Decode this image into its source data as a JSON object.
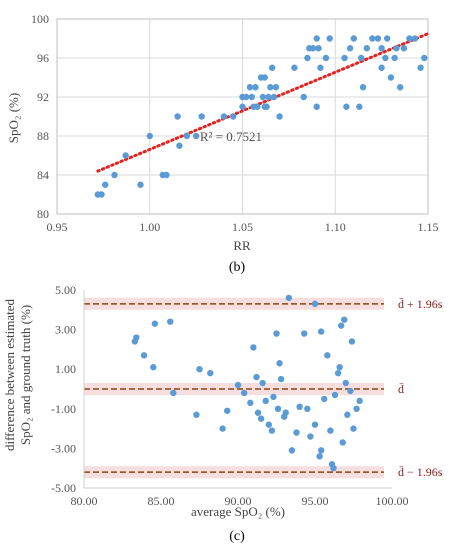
{
  "colors": {
    "points": "#5b9bd5",
    "trend": "#e32222",
    "bands": "#8b4513",
    "grid": "#d9d9d9",
    "band_bg": "#f7dede"
  },
  "chart_data": [
    {
      "type": "scatter",
      "panel_label": "(b)",
      "xlabel": "RR",
      "ylabel": "SpO₂ (%)",
      "xlim": [
        0.95,
        1.15
      ],
      "ylim": [
        80,
        100
      ],
      "xticks": [
        "0.95",
        "1.00",
        "1.05",
        "1.10",
        "1.15"
      ],
      "yticks": [
        "80",
        "84",
        "88",
        "92",
        "96",
        "100"
      ],
      "grid": true,
      "trendline": {
        "style": "dotted",
        "from": [
          0.972,
          84.4
        ],
        "to": [
          1.15,
          98.5
        ],
        "label": "R² = 0.7521",
        "label_at": [
          1.027,
          88.0
        ]
      },
      "points": [
        [
          0.972,
          82
        ],
        [
          0.974,
          82
        ],
        [
          0.976,
          83
        ],
        [
          0.981,
          84
        ],
        [
          0.987,
          86
        ],
        [
          0.995,
          83
        ],
        [
          1.0,
          88
        ],
        [
          1.007,
          84
        ],
        [
          1.009,
          84
        ],
        [
          1.015,
          90
        ],
        [
          1.016,
          87
        ],
        [
          1.02,
          88
        ],
        [
          1.025,
          88
        ],
        [
          1.028,
          90
        ],
        [
          1.04,
          90
        ],
        [
          1.045,
          90
        ],
        [
          1.05,
          91
        ],
        [
          1.05,
          92
        ],
        [
          1.052,
          92
        ],
        [
          1.054,
          93
        ],
        [
          1.055,
          92
        ],
        [
          1.056,
          91
        ],
        [
          1.057,
          93
        ],
        [
          1.058,
          91
        ],
        [
          1.06,
          94
        ],
        [
          1.061,
          92
        ],
        [
          1.062,
          94
        ],
        [
          1.062,
          91
        ],
        [
          1.063,
          91
        ],
        [
          1.064,
          92
        ],
        [
          1.065,
          93
        ],
        [
          1.066,
          95
        ],
        [
          1.067,
          92
        ],
        [
          1.068,
          93
        ],
        [
          1.07,
          90
        ],
        [
          1.078,
          95
        ],
        [
          1.083,
          92
        ],
        [
          1.085,
          96
        ],
        [
          1.086,
          97
        ],
        [
          1.088,
          97
        ],
        [
          1.09,
          91
        ],
        [
          1.09,
          98
        ],
        [
          1.091,
          97
        ],
        [
          1.092,
          95
        ],
        [
          1.095,
          96
        ],
        [
          1.097,
          98
        ],
        [
          1.105,
          96
        ],
        [
          1.106,
          91
        ],
        [
          1.108,
          97
        ],
        [
          1.11,
          98
        ],
        [
          1.113,
          91
        ],
        [
          1.114,
          96
        ],
        [
          1.115,
          93
        ],
        [
          1.117,
          97
        ],
        [
          1.12,
          98
        ],
        [
          1.123,
          98
        ],
        [
          1.125,
          97
        ],
        [
          1.125,
          95
        ],
        [
          1.127,
          96
        ],
        [
          1.128,
          98
        ],
        [
          1.13,
          94
        ],
        [
          1.132,
          96
        ],
        [
          1.133,
          97
        ],
        [
          1.135,
          93
        ],
        [
          1.137,
          97
        ],
        [
          1.14,
          98
        ],
        [
          1.143,
          98
        ],
        [
          1.146,
          95
        ],
        [
          1.148,
          96
        ]
      ]
    },
    {
      "type": "scatter",
      "panel_label": "(c)",
      "xlabel": "average SpO₂ (%)",
      "ylabel_lines": [
        "difference between estimated",
        "SpO₂ and ground truth (%)"
      ],
      "xlim": [
        80,
        100
      ],
      "ylim": [
        -5,
        5
      ],
      "xticks": [
        "80.00",
        "85.00",
        "90.00",
        "95.00",
        "100.00"
      ],
      "yticks": [
        "5.00",
        "3.00",
        "1.00",
        "-1.00",
        "-3.00",
        "-5.00"
      ],
      "grid": false,
      "reference_lines": [
        {
          "y": 4.3,
          "label": "d̄ + 1.96s"
        },
        {
          "y": 0.0,
          "label": "d̄"
        },
        {
          "y": -4.2,
          "label": "d̄ − 1.96s"
        }
      ],
      "points": [
        [
          83.3,
          2.4
        ],
        [
          83.4,
          2.6
        ],
        [
          83.9,
          1.7
        ],
        [
          84.5,
          1.1
        ],
        [
          84.6,
          3.3
        ],
        [
          85.6,
          3.4
        ],
        [
          85.8,
          -0.2
        ],
        [
          87.3,
          -1.3
        ],
        [
          87.5,
          1.0
        ],
        [
          88.2,
          0.8
        ],
        [
          89.0,
          -2.0
        ],
        [
          89.3,
          -1.1
        ],
        [
          90.0,
          0.2
        ],
        [
          90.4,
          -0.2
        ],
        [
          90.8,
          -0.7
        ],
        [
          91.0,
          2.1
        ],
        [
          91.2,
          0.6
        ],
        [
          91.3,
          -1.2
        ],
        [
          91.5,
          -1.5
        ],
        [
          91.6,
          0.3
        ],
        [
          91.8,
          -0.6
        ],
        [
          92.0,
          -1.8
        ],
        [
          92.2,
          -2.1
        ],
        [
          92.3,
          -0.4
        ],
        [
          92.5,
          2.8
        ],
        [
          92.6,
          -1.0
        ],
        [
          92.7,
          1.3
        ],
        [
          92.8,
          0.5
        ],
        [
          93.0,
          -1.4
        ],
        [
          93.1,
          -1.2
        ],
        [
          93.3,
          4.6
        ],
        [
          93.5,
          -3.1
        ],
        [
          93.8,
          -2.2
        ],
        [
          94.0,
          -0.9
        ],
        [
          94.3,
          2.8
        ],
        [
          94.5,
          -1.0
        ],
        [
          94.7,
          -2.4
        ],
        [
          95.0,
          -1.8
        ],
        [
          95.0,
          4.3
        ],
        [
          95.3,
          -3.4
        ],
        [
          95.4,
          2.9
        ],
        [
          95.4,
          -3.1
        ],
        [
          95.6,
          -0.5
        ],
        [
          95.8,
          1.7
        ],
        [
          96.0,
          -2.1
        ],
        [
          96.1,
          -3.8
        ],
        [
          96.2,
          -4.0
        ],
        [
          96.3,
          -0.3
        ],
        [
          96.5,
          0.8
        ],
        [
          96.6,
          1.1
        ],
        [
          96.7,
          3.2
        ],
        [
          96.8,
          -2.7
        ],
        [
          96.9,
          3.5
        ],
        [
          97.0,
          0.3
        ],
        [
          97.1,
          -1.3
        ],
        [
          97.3,
          -0.1
        ],
        [
          97.4,
          2.4
        ],
        [
          97.5,
          -2.0
        ],
        [
          97.7,
          -1.0
        ],
        [
          97.9,
          -0.6
        ]
      ]
    }
  ]
}
